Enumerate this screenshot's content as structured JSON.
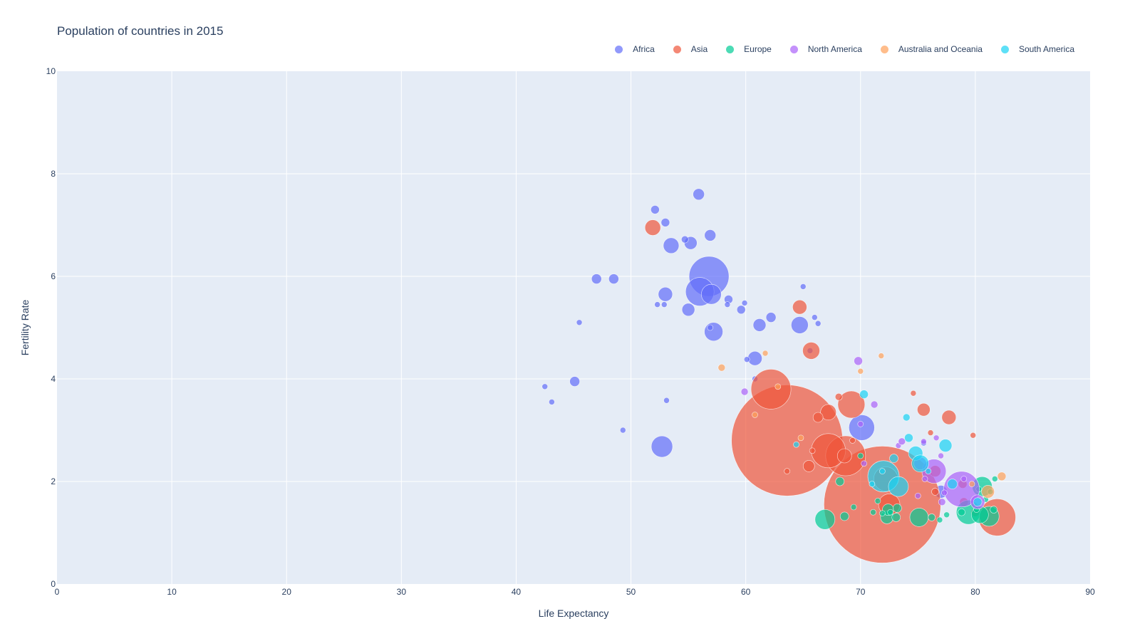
{
  "title": "Population of countries in 2015",
  "legend": [
    {
      "name": "Africa",
      "color": "#636efa"
    },
    {
      "name": "Asia",
      "color": "#ef553b"
    },
    {
      "name": "Europe",
      "color": "#00cc96"
    },
    {
      "name": "North America",
      "color": "#ab63fa"
    },
    {
      "name": "Australia and Oceania",
      "color": "#ffa15a"
    },
    {
      "name": "South America",
      "color": "#19d3f3"
    }
  ],
  "chart_data": {
    "type": "scatter",
    "title": "Population of countries in 2015",
    "xlabel": "Life Expectancy",
    "ylabel": "Fertility Rate",
    "xlim": [
      0,
      90
    ],
    "ylim": [
      0,
      10
    ],
    "x_ticks": [
      0,
      10,
      20,
      30,
      40,
      50,
      60,
      70,
      80,
      90
    ],
    "y_ticks": [
      0,
      2,
      4,
      6,
      8,
      10
    ],
    "grid": true,
    "legend_position": "top-right",
    "bubble_size_encodes": "population",
    "series": [
      {
        "name": "Africa",
        "color": "#636efa",
        "points": [
          [
            56.8,
            6.0,
            28
          ],
          [
            56.0,
            5.7,
            20
          ],
          [
            57.0,
            5.65,
            14
          ],
          [
            55.9,
            7.6,
            8
          ],
          [
            52.1,
            7.3,
            6
          ],
          [
            53.0,
            7.05,
            6
          ],
          [
            56.9,
            6.8,
            8
          ],
          [
            55.2,
            6.65,
            9
          ],
          [
            53.5,
            6.6,
            11
          ],
          [
            54.7,
            6.72,
            5
          ],
          [
            47.0,
            5.95,
            7
          ],
          [
            48.5,
            5.95,
            7
          ],
          [
            53.0,
            5.65,
            10
          ],
          [
            52.3,
            5.45,
            4
          ],
          [
            52.9,
            5.45,
            4
          ],
          [
            55.0,
            5.35,
            9
          ],
          [
            58.5,
            5.55,
            6
          ],
          [
            58.4,
            5.45,
            4
          ],
          [
            59.6,
            5.35,
            6
          ],
          [
            59.9,
            5.48,
            4
          ],
          [
            62.2,
            5.2,
            7
          ],
          [
            61.2,
            5.05,
            9
          ],
          [
            64.7,
            5.05,
            12
          ],
          [
            65.0,
            5.8,
            4
          ],
          [
            66.0,
            5.2,
            4
          ],
          [
            66.3,
            5.08,
            4
          ],
          [
            45.5,
            5.1,
            4
          ],
          [
            57.2,
            4.92,
            13
          ],
          [
            56.9,
            5.0,
            4
          ],
          [
            60.8,
            4.4,
            10
          ],
          [
            60.1,
            4.38,
            4
          ],
          [
            60.8,
            4.0,
            4
          ],
          [
            45.1,
            3.95,
            7
          ],
          [
            42.5,
            3.85,
            4
          ],
          [
            43.1,
            3.55,
            4
          ],
          [
            53.1,
            3.58,
            4
          ],
          [
            49.3,
            3.0,
            4
          ],
          [
            52.7,
            2.68,
            15
          ],
          [
            70.1,
            3.05,
            18
          ],
          [
            77.0,
            1.8,
            9
          ],
          [
            75.5,
            2.75,
            4
          ],
          [
            65.6,
            4.55,
            4
          ]
        ]
      },
      {
        "name": "Asia",
        "color": "#ef553b",
        "points": [
          [
            63.6,
            2.8,
            78
          ],
          [
            71.9,
            1.55,
            82
          ],
          [
            62.2,
            3.8,
            28
          ],
          [
            68.7,
            2.5,
            28
          ],
          [
            67.2,
            2.6,
            24
          ],
          [
            69.2,
            3.5,
            19
          ],
          [
            67.2,
            3.35,
            11
          ],
          [
            72.2,
            2.05,
            17
          ],
          [
            81.9,
            1.3,
            26
          ],
          [
            72.5,
            1.55,
            15
          ],
          [
            51.9,
            6.95,
            11
          ],
          [
            64.7,
            5.4,
            10
          ],
          [
            65.7,
            4.55,
            12
          ],
          [
            68.1,
            3.65,
            5
          ],
          [
            66.3,
            3.25,
            7
          ],
          [
            65.5,
            2.3,
            8
          ],
          [
            63.6,
            2.2,
            4
          ],
          [
            68.6,
            2.5,
            10
          ],
          [
            74.6,
            3.72,
            4
          ],
          [
            75.5,
            3.4,
            9
          ],
          [
            77.7,
            3.25,
            10
          ],
          [
            76.1,
            2.95,
            4
          ],
          [
            79.8,
            2.9,
            4
          ],
          [
            69.3,
            2.8,
            4
          ],
          [
            65.8,
            2.6,
            4
          ],
          [
            76.5,
            2.2,
            8
          ],
          [
            78.9,
            1.95,
            6
          ],
          [
            76.5,
            1.8,
            5
          ],
          [
            79.0,
            1.6,
            6
          ],
          [
            80.0,
            1.4,
            6
          ]
        ]
      },
      {
        "name": "Europe",
        "color": "#00cc96",
        "points": [
          [
            80.6,
            1.9,
            14
          ],
          [
            79.4,
            1.4,
            17
          ],
          [
            81.2,
            1.32,
            14
          ],
          [
            80.4,
            1.35,
            12
          ],
          [
            66.9,
            1.26,
            14
          ],
          [
            75.1,
            1.3,
            13
          ],
          [
            72.3,
            1.3,
            9
          ],
          [
            72.4,
            1.45,
            8
          ],
          [
            73.2,
            1.48,
            6
          ],
          [
            73.1,
            1.3,
            6
          ],
          [
            68.2,
            2.0,
            6
          ],
          [
            68.6,
            1.32,
            6
          ],
          [
            69.4,
            1.5,
            4
          ],
          [
            71.1,
            1.4,
            4
          ],
          [
            71.9,
            1.38,
            4
          ],
          [
            72.6,
            1.4,
            4
          ],
          [
            76.2,
            1.3,
            5
          ],
          [
            76.9,
            1.25,
            4
          ],
          [
            77.5,
            1.35,
            4
          ],
          [
            78.8,
            1.4,
            5
          ],
          [
            80.1,
            1.45,
            4
          ],
          [
            80.9,
            1.65,
            4
          ],
          [
            81.6,
            1.45,
            5
          ],
          [
            81.3,
            1.8,
            4
          ],
          [
            81.7,
            2.05,
            4
          ],
          [
            80.3,
            1.85,
            4
          ],
          [
            71.5,
            1.62,
            4
          ],
          [
            70.0,
            2.5,
            4
          ]
        ]
      },
      {
        "name": "North America",
        "color": "#ab63fa",
        "points": [
          [
            78.8,
            1.85,
            25
          ],
          [
            76.4,
            2.2,
            17
          ],
          [
            80.2,
            1.6,
            10
          ],
          [
            75.2,
            2.35,
            9
          ],
          [
            69.8,
            4.35,
            6
          ],
          [
            59.9,
            3.75,
            5
          ],
          [
            71.2,
            3.5,
            5
          ],
          [
            70.0,
            3.12,
            4
          ],
          [
            70.3,
            2.35,
            4
          ],
          [
            73.3,
            2.7,
            4
          ],
          [
            73.6,
            2.78,
            5
          ],
          [
            75.5,
            2.78,
            4
          ],
          [
            76.6,
            2.85,
            4
          ],
          [
            77.0,
            2.5,
            4
          ],
          [
            77.3,
            1.78,
            4
          ],
          [
            79.0,
            2.05,
            4
          ],
          [
            77.1,
            1.6,
            5
          ],
          [
            75.0,
            1.72,
            4
          ],
          [
            75.6,
            2.05,
            4
          ]
        ]
      },
      {
        "name": "Australia and Oceania",
        "color": "#ffa15a",
        "points": [
          [
            81.1,
            1.8,
            9
          ],
          [
            82.3,
            2.1,
            6
          ],
          [
            57.9,
            4.22,
            5
          ],
          [
            61.7,
            4.5,
            4
          ],
          [
            71.8,
            4.45,
            4
          ],
          [
            70.0,
            4.15,
            4
          ],
          [
            62.8,
            3.85,
            4
          ],
          [
            60.8,
            3.3,
            4
          ],
          [
            64.8,
            2.85,
            4
          ],
          [
            79.7,
            1.95,
            4
          ]
        ]
      },
      {
        "name": "South America",
        "color": "#19d3f3",
        "points": [
          [
            72.0,
            2.1,
            22
          ],
          [
            73.3,
            1.9,
            14
          ],
          [
            74.8,
            2.55,
            10
          ],
          [
            75.2,
            2.35,
            12
          ],
          [
            77.4,
            2.7,
            9
          ],
          [
            74.2,
            2.85,
            6
          ],
          [
            74.0,
            3.25,
            5
          ],
          [
            70.3,
            3.7,
            6
          ],
          [
            64.4,
            2.72,
            4
          ],
          [
            72.9,
            2.45,
            6
          ],
          [
            78.0,
            1.95,
            7
          ],
          [
            80.2,
            1.6,
            6
          ],
          [
            71.0,
            1.95,
            4
          ],
          [
            71.9,
            2.2,
            4
          ],
          [
            75.9,
            2.2,
            4
          ]
        ]
      }
    ]
  }
}
